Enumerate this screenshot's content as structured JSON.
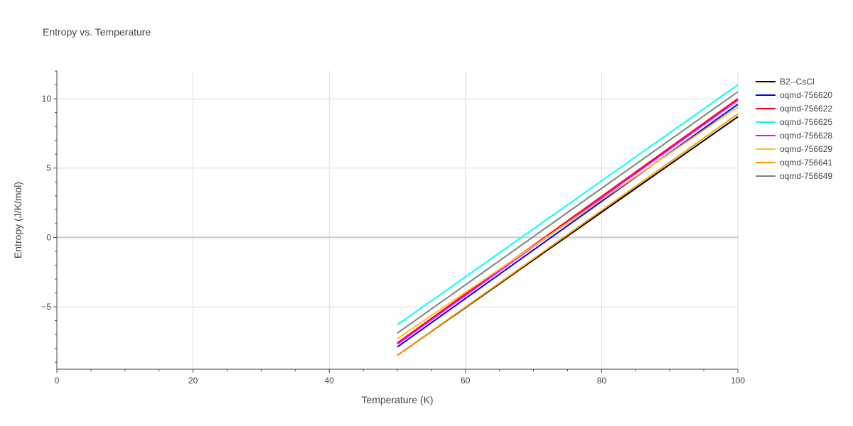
{
  "chart_data": {
    "type": "line",
    "title": "Entropy vs. Temperature",
    "xlabel": "Temperature (K)",
    "ylabel": "Entropy (J/K/mol)",
    "xlim": [
      0,
      100
    ],
    "ylim": [
      -9.5,
      12
    ],
    "x_ticks": [
      0,
      20,
      40,
      60,
      80,
      100
    ],
    "y_ticks": [
      -5,
      0,
      5,
      10
    ],
    "grid": true,
    "legend_position": "top-right",
    "series": [
      {
        "name": "B2--CsCl",
        "color": "#000000",
        "x": [
          50,
          100
        ],
        "y": [
          -8.5,
          8.7
        ]
      },
      {
        "name": "oqmd-756620",
        "color": "#0000ff",
        "x": [
          50,
          100
        ],
        "y": [
          -7.9,
          9.6
        ]
      },
      {
        "name": "oqmd-756622",
        "color": "#ff0000",
        "x": [
          50,
          100
        ],
        "y": [
          -7.6,
          10.0
        ]
      },
      {
        "name": "oqmd-756625",
        "color": "#00ffff",
        "x": [
          50,
          100
        ],
        "y": [
          -6.3,
          11.0
        ]
      },
      {
        "name": "oqmd-756628",
        "color": "#ff00ff",
        "x": [
          50,
          100
        ],
        "y": [
          -7.7,
          9.9
        ]
      },
      {
        "name": "oqmd-756629",
        "color": "#ffc020",
        "x": [
          50,
          100
        ],
        "y": [
          -7.3,
          9.4
        ]
      },
      {
        "name": "oqmd-756641",
        "color": "#ff9900",
        "x": [
          50,
          100
        ],
        "y": [
          -8.5,
          8.9
        ]
      },
      {
        "name": "oqmd-756649",
        "color": "#808080",
        "x": [
          50,
          100
        ],
        "y": [
          -6.9,
          10.5
        ]
      }
    ]
  }
}
